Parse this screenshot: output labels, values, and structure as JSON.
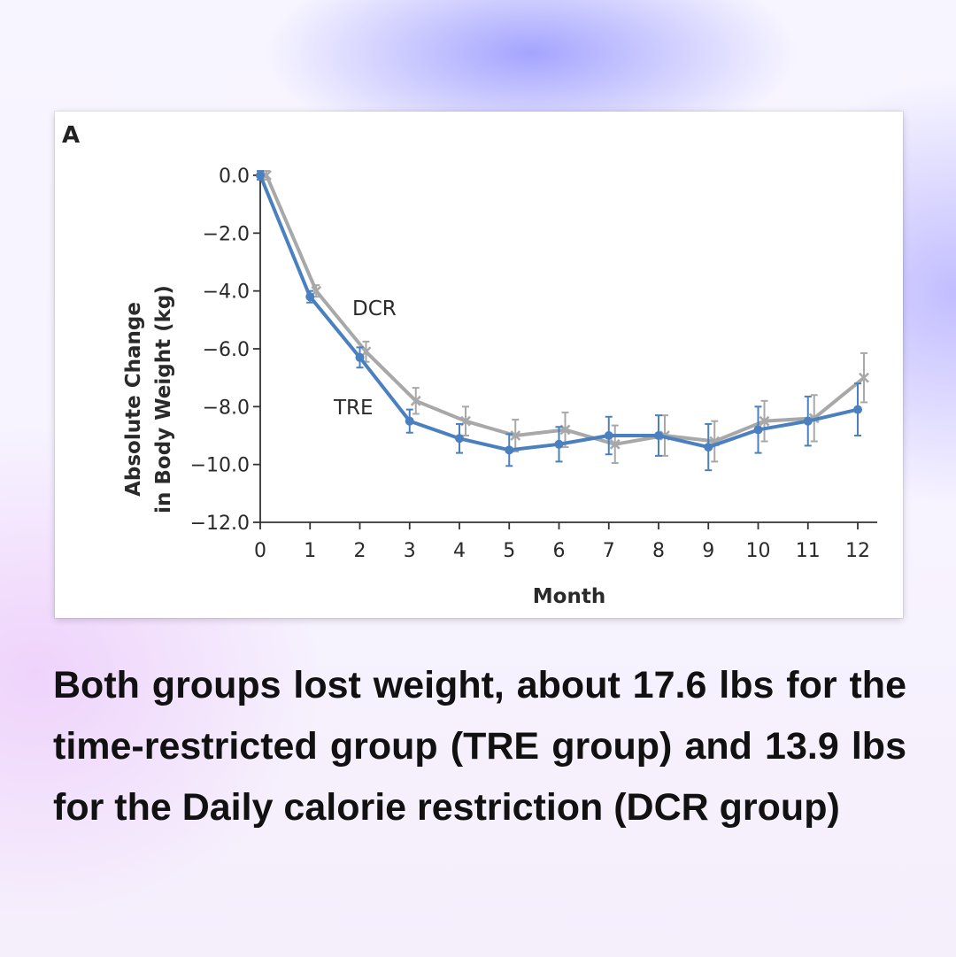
{
  "chart_data": {
    "type": "line",
    "panel_label": "A",
    "xlabel": "Month",
    "ylabel_lines": [
      "Absolute Change",
      "in Body Weight (kg)"
    ],
    "x": [
      0,
      1,
      2,
      3,
      4,
      5,
      6,
      7,
      8,
      9,
      10,
      11,
      12
    ],
    "xlim": [
      0,
      12
    ],
    "ylim": [
      -12.0,
      0.0
    ],
    "y_ticks": [
      0.0,
      -2.0,
      -4.0,
      -6.0,
      -8.0,
      -10.0,
      -12.0
    ],
    "y_tick_labels": [
      "0.0",
      "−2.0",
      "−4.0",
      "−6.0",
      "−8.0",
      "−10.0",
      "−12.0"
    ],
    "x_tick_labels": [
      "0",
      "1",
      "2",
      "3",
      "4",
      "5",
      "6",
      "7",
      "8",
      "9",
      "10",
      "11",
      "12"
    ],
    "series": [
      {
        "name": "DCR",
        "color": "#a8a8a8",
        "marker": "x",
        "values": [
          0.0,
          -4.0,
          -6.1,
          -7.8,
          -8.5,
          -9.0,
          -8.8,
          -9.3,
          -9.0,
          -9.2,
          -8.5,
          -8.4,
          -7.0
        ],
        "error": [
          0.15,
          0.2,
          0.35,
          0.45,
          0.5,
          0.55,
          0.6,
          0.65,
          0.7,
          0.7,
          0.7,
          0.8,
          0.85
        ]
      },
      {
        "name": "TRE",
        "color": "#4a80c0",
        "marker": "circle",
        "values": [
          0.0,
          -4.2,
          -6.3,
          -8.5,
          -9.1,
          -9.5,
          -9.3,
          -9.0,
          -9.0,
          -9.4,
          -8.8,
          -8.5,
          -8.1
        ],
        "error": [
          0.15,
          0.2,
          0.35,
          0.4,
          0.5,
          0.55,
          0.6,
          0.65,
          0.7,
          0.8,
          0.8,
          0.85,
          0.9
        ]
      }
    ]
  },
  "caption": "Both groups lost weight, about 17.6 lbs for the time-restricted group (TRE group) and 13.9 lbs for the Daily calorie restriction (DCR group)"
}
